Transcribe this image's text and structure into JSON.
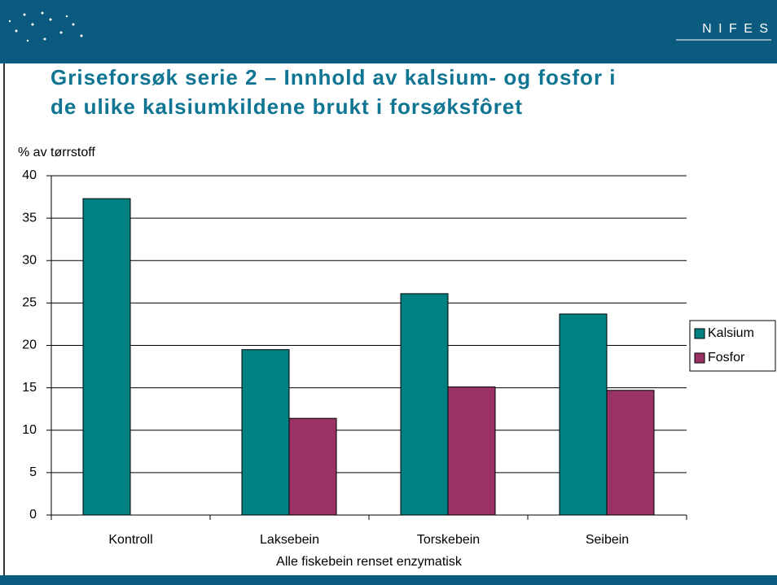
{
  "header": {
    "logo_text": "N I F E S",
    "title_lines": [
      "Griseforsøk serie 2 – Innhold av kalsium- og fosfor i",
      "de ulike kalsiumkildene brukt i forsøksfôret"
    ]
  },
  "chart_data": {
    "type": "bar",
    "y_label": "% av tørrstoff",
    "x_label": "Alle fiskebein renset enzymatisk",
    "categories": [
      "Kontroll",
      "Laksebein",
      "Torskebein",
      "Seibein"
    ],
    "series": [
      {
        "name": "Kalsium",
        "color": "#008080",
        "values": [
          37.3,
          19.5,
          26.1,
          23.7
        ]
      },
      {
        "name": "Fosfor",
        "color": "#993366",
        "values": [
          null,
          11.4,
          15.1,
          14.7
        ]
      }
    ],
    "ylim": [
      0,
      40
    ],
    "yticks": [
      0,
      5,
      10,
      15,
      20,
      25,
      30,
      35,
      40
    ],
    "grid": true,
    "legend": "right"
  }
}
